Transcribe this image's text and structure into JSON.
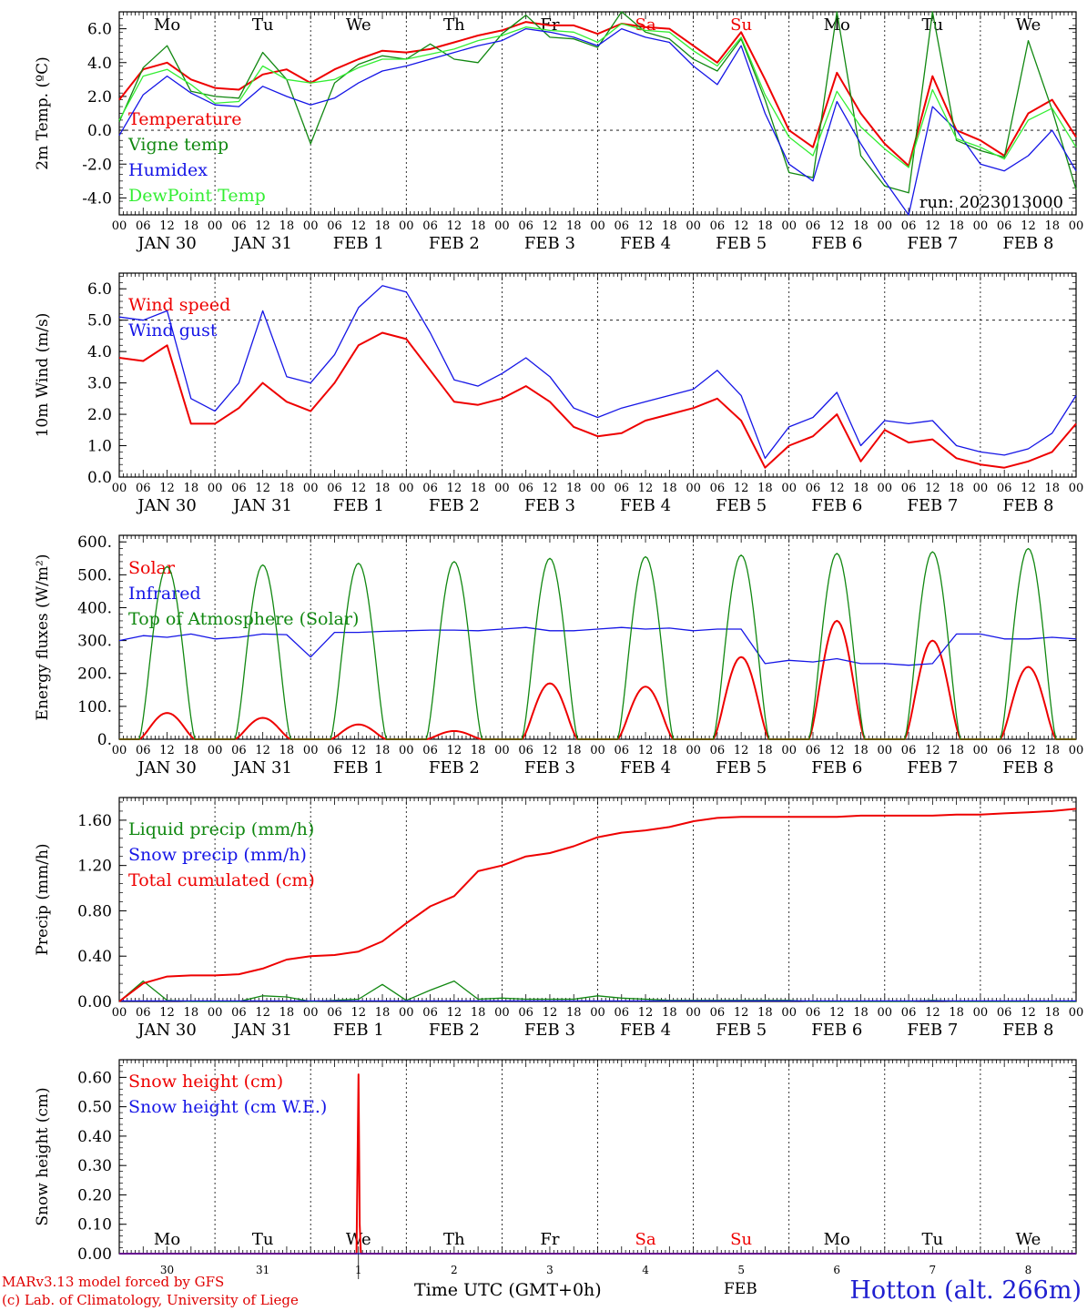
{
  "colors": {
    "red": "#ee0000",
    "green": "#118811",
    "blue": "#1515e6",
    "lightgreen": "#33ee33",
    "black": "#000000"
  },
  "time_axis": {
    "hour_ticks": [
      "00",
      "06",
      "12",
      "18"
    ],
    "end_tick": "00",
    "date_labels": [
      "JAN 30",
      "JAN 31",
      "FEB  1",
      "FEB  2",
      "FEB  3",
      "FEB  4",
      "FEB  5",
      "FEB  6",
      "FEB  7",
      "FEB  8"
    ]
  },
  "weekdays": [
    "Mo",
    "Tu",
    "We",
    "Th",
    "Fr",
    "Sa",
    "Su",
    "Mo",
    "Tu",
    "We"
  ],
  "weekday_colors": [
    "#000000",
    "#000000",
    "#000000",
    "#000000",
    "#000000",
    "#ee0000",
    "#ee0000",
    "#000000",
    "#000000",
    "#000000"
  ],
  "day_numbers": [
    "30",
    "31",
    "1",
    "2",
    "3",
    "4",
    "5",
    "6",
    "7",
    "8"
  ],
  "chart_data": [
    {
      "type": "line",
      "ylabel": "2m Temp. (ºC)",
      "ylim": [
        -5.0,
        7.0
      ],
      "yticks": [
        "6.0",
        "4.0",
        "2.0",
        "0.0",
        "-2.0",
        "-4.0"
      ],
      "ytick_values": [
        6,
        4,
        2,
        0,
        -2,
        -4
      ],
      "refline": 0,
      "annotation": "run: 2023013000",
      "x_unit": "hours since JAN 30 00 UTC",
      "series": [
        {
          "name": "Temperature",
          "color": "#ee0000",
          "x": [
            0,
            6,
            12,
            18,
            24,
            30,
            36,
            42,
            48,
            54,
            60,
            66,
            72,
            78,
            84,
            90,
            96,
            102,
            108,
            114,
            120,
            126,
            132,
            138,
            144,
            150,
            156,
            162,
            168,
            174,
            180,
            186,
            192,
            198,
            204,
            210,
            216,
            222,
            228,
            234,
            240
          ],
          "y": [
            1.8,
            3.6,
            4.0,
            3.0,
            2.5,
            2.4,
            3.3,
            3.6,
            2.8,
            3.6,
            4.2,
            4.7,
            4.6,
            4.8,
            5.2,
            5.6,
            5.9,
            6.4,
            6.2,
            6.2,
            5.7,
            6.3,
            6.1,
            6.0,
            5.0,
            4.0,
            5.8,
            3.0,
            0.0,
            -1.0,
            3.4,
            1.0,
            -0.8,
            -2.1,
            3.2,
            0.0,
            -0.6,
            -1.5,
            1.0,
            1.8,
            -0.4
          ]
        },
        {
          "name": "Vigne temp",
          "color": "#118811",
          "x": [
            0,
            6,
            12,
            18,
            24,
            30,
            36,
            42,
            48,
            54,
            60,
            66,
            72,
            78,
            84,
            90,
            96,
            102,
            108,
            114,
            120,
            126,
            132,
            138,
            144,
            150,
            156,
            162,
            168,
            174,
            180,
            186,
            192,
            198,
            204,
            210,
            216,
            222,
            228,
            234,
            240
          ],
          "y": [
            0.5,
            3.7,
            5.0,
            2.3,
            2.0,
            1.9,
            4.6,
            3.0,
            -0.8,
            2.8,
            3.9,
            4.4,
            4.2,
            5.1,
            4.2,
            4.0,
            5.7,
            6.8,
            5.5,
            5.4,
            4.9,
            7.4,
            5.8,
            5.4,
            4.2,
            3.5,
            5.4,
            1.8,
            -2.5,
            -2.8,
            7.0,
            -1.5,
            -3.3,
            -3.7,
            7.0,
            -0.6,
            -1.2,
            -1.6,
            5.3,
            1.2,
            -3.5
          ]
        },
        {
          "name": "Humidex",
          "color": "#1515e6",
          "x": [
            0,
            6,
            12,
            18,
            24,
            30,
            36,
            42,
            48,
            54,
            60,
            66,
            72,
            78,
            84,
            90,
            96,
            102,
            108,
            114,
            120,
            126,
            132,
            138,
            144,
            150,
            156,
            162,
            168,
            174,
            180,
            186,
            192,
            198,
            204,
            210,
            216,
            222,
            228,
            234,
            240
          ],
          "y": [
            -0.3,
            2.1,
            3.2,
            2.2,
            1.5,
            1.4,
            2.6,
            2.0,
            1.5,
            1.9,
            2.8,
            3.5,
            3.8,
            4.2,
            4.6,
            5.0,
            5.3,
            6.0,
            5.8,
            5.5,
            5.0,
            6.0,
            5.5,
            5.2,
            3.8,
            2.7,
            5.0,
            1.0,
            -2.0,
            -3.0,
            1.7,
            -0.8,
            -3.0,
            -5.0,
            1.4,
            0.0,
            -2.0,
            -2.4,
            -1.5,
            0.0,
            -2.4
          ]
        },
        {
          "name": "DewPoint Temp",
          "color": "#33ee33",
          "x": [
            0,
            6,
            12,
            18,
            24,
            30,
            36,
            42,
            48,
            54,
            60,
            66,
            72,
            78,
            84,
            90,
            96,
            102,
            108,
            114,
            120,
            126,
            132,
            138,
            144,
            150,
            156,
            162,
            168,
            174,
            180,
            186,
            192,
            198,
            204,
            210,
            216,
            222,
            228,
            234,
            240
          ],
          "y": [
            0.6,
            3.2,
            3.6,
            2.7,
            1.6,
            1.7,
            3.8,
            3.0,
            2.8,
            3.0,
            3.7,
            4.2,
            4.2,
            4.5,
            4.8,
            5.3,
            5.6,
            6.1,
            5.9,
            5.8,
            5.2,
            6.3,
            5.9,
            5.8,
            4.7,
            3.8,
            5.5,
            2.1,
            -0.4,
            -1.5,
            2.3,
            0.2,
            -1.1,
            -2.2,
            2.4,
            -0.5,
            -1.0,
            -1.7,
            0.6,
            1.3,
            -1.0
          ]
        }
      ]
    },
    {
      "type": "line",
      "ylabel": "10m Wind (m/s)",
      "ylim": [
        0,
        6.5
      ],
      "yticks": [
        "6.0",
        "5.0",
        "4.0",
        "3.0",
        "2.0",
        "1.0",
        "0.0"
      ],
      "ytick_values": [
        6,
        5,
        4,
        3,
        2,
        1,
        0
      ],
      "refline": 5,
      "x_unit": "hours since JAN 30 00 UTC",
      "series": [
        {
          "name": "Wind speed",
          "color": "#ee0000",
          "x": [
            0,
            6,
            12,
            18,
            24,
            30,
            36,
            42,
            48,
            54,
            60,
            66,
            72,
            78,
            84,
            90,
            96,
            102,
            108,
            114,
            120,
            126,
            132,
            138,
            144,
            150,
            156,
            162,
            168,
            174,
            180,
            186,
            192,
            198,
            204,
            210,
            216,
            222,
            228,
            234,
            240
          ],
          "y": [
            3.8,
            3.7,
            4.2,
            1.7,
            1.7,
            2.2,
            3.0,
            2.4,
            2.1,
            3.0,
            4.2,
            4.6,
            4.4,
            3.4,
            2.4,
            2.3,
            2.5,
            2.9,
            2.4,
            1.6,
            1.3,
            1.4,
            1.8,
            2.0,
            2.2,
            2.5,
            1.8,
            0.3,
            1.0,
            1.3,
            2.0,
            0.5,
            1.5,
            1.1,
            1.2,
            0.6,
            0.4,
            0.3,
            0.5,
            0.8,
            1.7
          ]
        },
        {
          "name": "Wind gust",
          "color": "#1515e6",
          "x": [
            0,
            6,
            12,
            18,
            24,
            30,
            36,
            42,
            48,
            54,
            60,
            66,
            72,
            78,
            84,
            90,
            96,
            102,
            108,
            114,
            120,
            126,
            132,
            138,
            144,
            150,
            156,
            162,
            168,
            174,
            180,
            186,
            192,
            198,
            204,
            210,
            216,
            222,
            228,
            234,
            240
          ],
          "y": [
            5.1,
            5.0,
            5.3,
            2.5,
            2.1,
            3.0,
            5.3,
            3.2,
            3.0,
            3.9,
            5.4,
            6.1,
            5.9,
            4.6,
            3.1,
            2.9,
            3.3,
            3.8,
            3.2,
            2.2,
            1.9,
            2.2,
            2.4,
            2.6,
            2.8,
            3.4,
            2.6,
            0.6,
            1.6,
            1.9,
            2.7,
            1.0,
            1.8,
            1.7,
            1.8,
            1.0,
            0.8,
            0.7,
            0.9,
            1.4,
            2.6
          ]
        }
      ]
    },
    {
      "type": "line",
      "ylabel": "Energy fluxes (W/m²)",
      "ylim": [
        0,
        620
      ],
      "yticks": [
        "600.",
        "500.",
        "400.",
        "300.",
        "200.",
        "100.",
        "0."
      ],
      "ytick_values": [
        600,
        500,
        400,
        300,
        200,
        100,
        0
      ],
      "x_unit": "hours since JAN 30 00 UTC",
      "series": [
        {
          "name": "Solar",
          "color": "#ee0000",
          "kind": "daily_bell",
          "peaks": [
            80,
            65,
            45,
            25,
            170,
            160,
            250,
            360,
            300,
            220
          ]
        },
        {
          "name": "Infrared",
          "color": "#1515e6",
          "x": [
            0,
            6,
            12,
            18,
            24,
            30,
            36,
            42,
            48,
            54,
            60,
            66,
            72,
            78,
            84,
            90,
            96,
            102,
            108,
            114,
            120,
            126,
            132,
            138,
            144,
            150,
            156,
            162,
            168,
            174,
            180,
            186,
            192,
            198,
            204,
            210,
            216,
            222,
            228,
            234,
            240
          ],
          "y": [
            300,
            315,
            310,
            320,
            305,
            310,
            320,
            318,
            250,
            325,
            325,
            328,
            330,
            332,
            332,
            330,
            335,
            340,
            330,
            330,
            335,
            340,
            335,
            338,
            330,
            335,
            335,
            230,
            240,
            235,
            245,
            230,
            230,
            225,
            230,
            320,
            320,
            305,
            305,
            310,
            305
          ]
        },
        {
          "name": "Top of Atmosphere (Solar)",
          "color": "#118811",
          "kind": "daily_bell",
          "peaks": [
            525,
            530,
            535,
            540,
            550,
            555,
            560,
            565,
            570,
            580
          ]
        }
      ]
    },
    {
      "type": "line",
      "ylabel": "Precip (mm/h)",
      "ylim": [
        0,
        1.8
      ],
      "yticks": [
        "1.60",
        "1.20",
        "0.80",
        "0.40",
        "0.00"
      ],
      "ytick_values": [
        1.6,
        1.2,
        0.8,
        0.4,
        0
      ],
      "x_unit": "hours since JAN 30 00 UTC",
      "series": [
        {
          "name": "Liquid precip (mm/h)",
          "color": "#118811",
          "x": [
            0,
            6,
            12,
            18,
            24,
            30,
            36,
            42,
            48,
            54,
            60,
            66,
            72,
            78,
            84,
            90,
            96,
            102,
            108,
            114,
            120,
            126,
            132,
            138,
            144,
            150,
            156,
            162,
            168,
            174,
            180,
            186,
            192,
            198,
            204,
            210,
            216,
            222,
            228,
            234,
            240
          ],
          "y": [
            0,
            0.18,
            0.01,
            0,
            0,
            0,
            0.05,
            0.04,
            0,
            0.01,
            0.02,
            0.15,
            0.01,
            0.1,
            0.18,
            0.02,
            0.03,
            0.02,
            0.02,
            0.02,
            0.05,
            0.03,
            0.02,
            0.01,
            0.01,
            0.01,
            0.01,
            0.01,
            0.01,
            0,
            0,
            0,
            0,
            0,
            0.01,
            0,
            0,
            0,
            0,
            0,
            0
          ]
        },
        {
          "name": "Snow precip (mm/h)",
          "color": "#1515e6",
          "x": [
            0,
            240
          ],
          "y": [
            0.005,
            0.005
          ]
        },
        {
          "name": "Total cumulated (cm)",
          "color": "#ee0000",
          "x": [
            0,
            6,
            12,
            18,
            24,
            30,
            36,
            42,
            48,
            54,
            60,
            66,
            72,
            78,
            84,
            90,
            96,
            102,
            108,
            114,
            120,
            126,
            132,
            138,
            144,
            150,
            156,
            162,
            168,
            174,
            180,
            186,
            192,
            198,
            204,
            210,
            216,
            222,
            228,
            234,
            240
          ],
          "y": [
            0,
            0.16,
            0.22,
            0.23,
            0.23,
            0.24,
            0.29,
            0.37,
            0.4,
            0.41,
            0.44,
            0.53,
            0.69,
            0.84,
            0.93,
            1.15,
            1.2,
            1.28,
            1.31,
            1.37,
            1.45,
            1.49,
            1.51,
            1.54,
            1.59,
            1.62,
            1.63,
            1.63,
            1.63,
            1.63,
            1.63,
            1.64,
            1.64,
            1.64,
            1.64,
            1.65,
            1.65,
            1.66,
            1.67,
            1.68,
            1.7
          ]
        }
      ]
    },
    {
      "type": "line",
      "ylabel": "Snow height (cm)",
      "ylim": [
        0,
        0.66
      ],
      "yticks": [
        "0.60",
        "0.50",
        "0.40",
        "0.30",
        "0.20",
        "0.10",
        "0.00"
      ],
      "ytick_values": [
        0.6,
        0.5,
        0.4,
        0.3,
        0.2,
        0.1,
        0
      ],
      "x_unit": "hours since JAN 30 00 UTC",
      "series": [
        {
          "name": "Snow height (cm)",
          "color": "#ee0000",
          "x": [
            0,
            59.5,
            60,
            60.3,
            60.6,
            240
          ],
          "y": [
            0,
            0,
            0.61,
            0.1,
            0,
            0
          ]
        },
        {
          "name": "Snow height (cm W.E.)",
          "color": "#1515e6",
          "x": [
            0,
            240
          ],
          "y": [
            0,
            0
          ]
        }
      ]
    }
  ],
  "footer": {
    "model": "MARv3.13 model forced by GFS",
    "copyright": "(c) Lab. of Climatology, University of Liege",
    "time_label": "Time UTC (GMT+0h)",
    "month": "FEB",
    "station": "Hotton (alt. 266m)"
  }
}
